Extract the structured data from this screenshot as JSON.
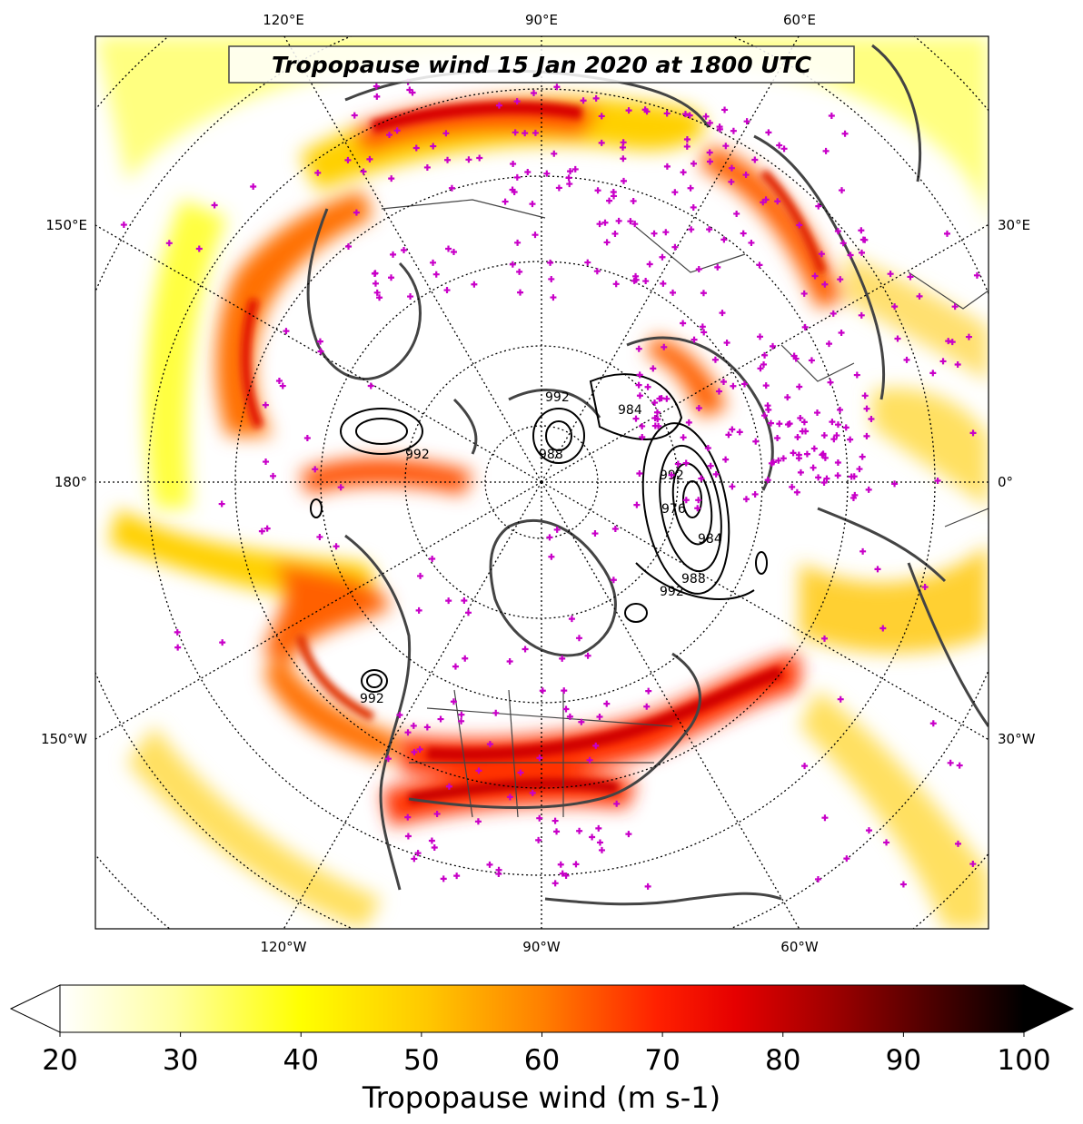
{
  "map": {
    "title": "Tropopause wind 15 Jan 2020 at 1800 UTC",
    "projection": "north-polar-stereographic",
    "top_labels": [
      "120°E",
      "90°E",
      "60°E"
    ],
    "bottom_labels": [
      "120°W",
      "90°W",
      "60°W"
    ],
    "left_labels": [
      "150°E",
      "180°",
      "150°W"
    ],
    "right_labels": [
      "30°E",
      "0°",
      "30°W"
    ],
    "contour_labels": [
      "992",
      "992",
      "988",
      "984",
      "976",
      "984",
      "988",
      "992",
      "992",
      "992"
    ],
    "station_marker_color": "#c800c8",
    "coastline_color": "#444444"
  },
  "colorbar": {
    "title": "Tropopause wind (m s-1)",
    "ticks": [
      "20",
      "30",
      "40",
      "50",
      "60",
      "70",
      "80",
      "90",
      "100"
    ],
    "min": 20,
    "max": 100,
    "extend": "both",
    "colormap": "hot_r",
    "colors": [
      "#ffffff",
      "#ffff80",
      "#ffff00",
      "#ffcc00",
      "#ff8000",
      "#ff2000",
      "#e60000",
      "#a00000",
      "#500000",
      "#000000"
    ]
  }
}
